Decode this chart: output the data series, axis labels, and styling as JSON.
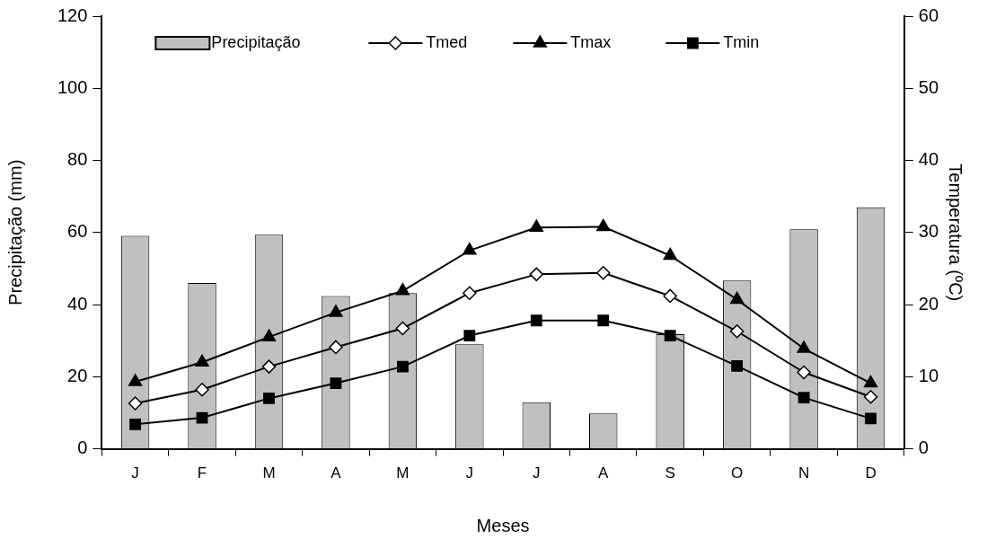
{
  "chart_data": {
    "type": "bar",
    "categories": [
      "J",
      "F",
      "M",
      "A",
      "M",
      "J",
      "J",
      "A",
      "S",
      "O",
      "N",
      "D"
    ],
    "xlabel": "Meses",
    "ylabel": "Precipitação (mm)",
    "y2label": "Temperatura (ºC)",
    "ylim": [
      0,
      120
    ],
    "yticks": [
      0,
      20,
      40,
      60,
      80,
      100,
      120
    ],
    "y2lim": [
      0,
      60
    ],
    "y2ticks": [
      0,
      10,
      20,
      30,
      40,
      50,
      60
    ],
    "grid": false,
    "legend": "top",
    "series": [
      {
        "name": "Precipitação",
        "color": "#c0c0c0",
        "values": [
          59.1,
          46,
          59.4,
          42.4,
          43.2,
          29,
          12.9,
          9.8,
          31.8,
          46.7,
          60.9,
          67
        ]
      },
      {
        "name": "Tmed",
        "type": "line",
        "axis": "y2",
        "marker": "diamond",
        "color": "#000000",
        "values": [
          6.3,
          8.2,
          11.4,
          14.1,
          16.7,
          21.6,
          24.2,
          24.4,
          21.2,
          16.3,
          10.6,
          7.2
        ]
      },
      {
        "name": "Tmax",
        "type": "line",
        "axis": "y2",
        "marker": "triangle",
        "color": "#000000",
        "values": [
          9.3,
          12.0,
          15.5,
          18.9,
          21.9,
          27.5,
          30.7,
          30.8,
          26.8,
          20.7,
          13.9,
          9.1
        ]
      },
      {
        "name": "Tmin",
        "type": "line",
        "axis": "y2",
        "marker": "square",
        "color": "#000000",
        "values": [
          3.4,
          4.3,
          7.0,
          9.1,
          11.4,
          15.7,
          17.8,
          17.8,
          15.7,
          11.5,
          7.1,
          4.2
        ]
      }
    ]
  }
}
